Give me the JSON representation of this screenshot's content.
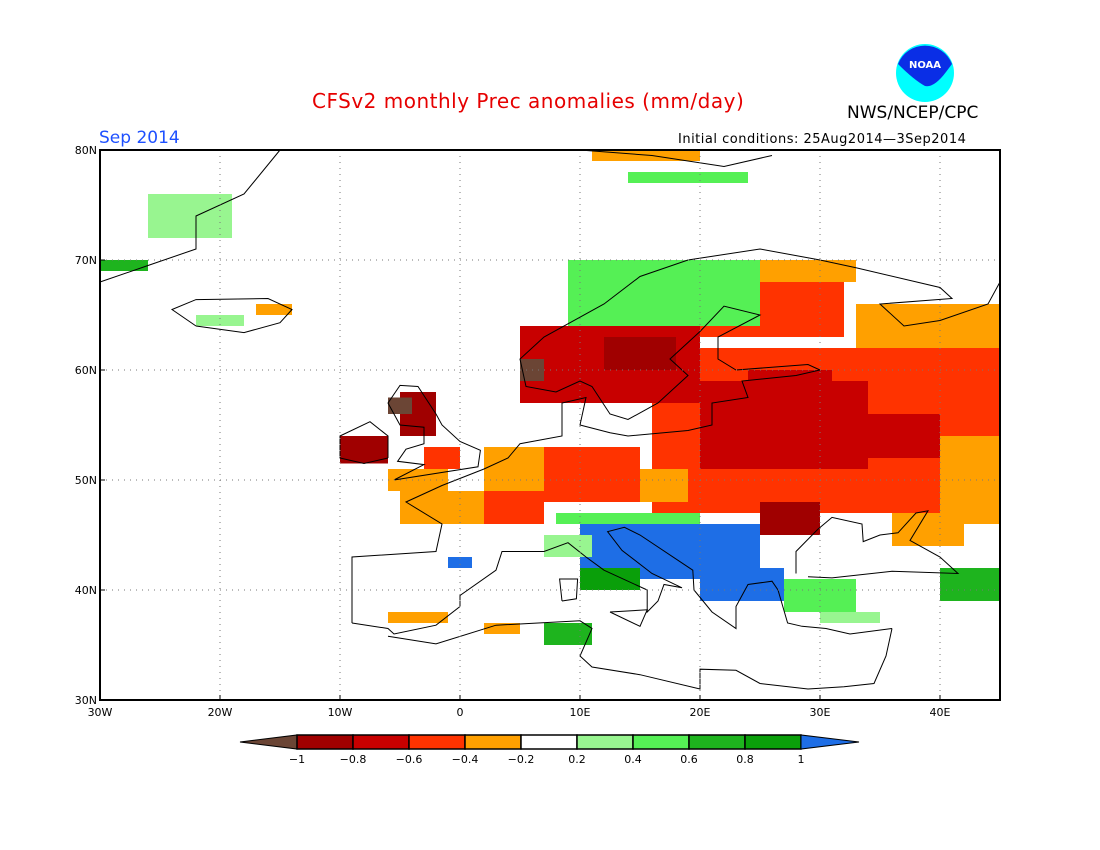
{
  "header": {
    "title": "CFSv2 monthly Prec anomalies (mm/day)",
    "month": "Sep 2014",
    "initial_conditions": "Initial conditions: 25Aug2014—3Sep2014",
    "organization": "NWS/NCEP/CPC",
    "logo_text": "NOAA"
  },
  "map": {
    "lon_range": [
      -30,
      45
    ],
    "lat_range": [
      30,
      80
    ],
    "lon_ticks": [
      "30W",
      "20W",
      "10W",
      "0",
      "10E",
      "20E",
      "30E",
      "40E"
    ],
    "lat_ticks": [
      "30N",
      "40N",
      "50N",
      "60N",
      "70N",
      "80N"
    ],
    "grid": "dotted, every 10 degrees",
    "anomaly_regions": [
      {
        "lon": [
          16,
          45
        ],
        "lat": [
          47,
          62
        ],
        "level": 3
      },
      {
        "lon": [
          20,
          34
        ],
        "lat": [
          51,
          59
        ],
        "level": 2
      },
      {
        "lon": [
          34,
          40
        ],
        "lat": [
          52,
          56
        ],
        "level": 2
      },
      {
        "lon": [
          18,
          32
        ],
        "lat": [
          63,
          68
        ],
        "level": 3
      },
      {
        "lon": [
          24,
          31
        ],
        "lat": [
          55,
          60
        ],
        "level": 2
      },
      {
        "lon": [
          22,
          33
        ],
        "lat": [
          68,
          70
        ],
        "level": 4
      },
      {
        "lon": [
          33,
          45
        ],
        "lat": [
          62,
          66
        ],
        "level": 4
      },
      {
        "lon": [
          40,
          45
        ],
        "lat": [
          46,
          54
        ],
        "level": 4
      },
      {
        "lon": [
          36,
          42
        ],
        "lat": [
          44,
          47
        ],
        "level": 4
      },
      {
        "lon": [
          5,
          20
        ],
        "lat": [
          57,
          64
        ],
        "level": 2
      },
      {
        "lon": [
          12,
          18
        ],
        "lat": [
          60,
          63
        ],
        "level": 1
      },
      {
        "lon": [
          15,
          20
        ],
        "lat": [
          64,
          67
        ],
        "level": 2
      },
      {
        "lon": [
          5,
          7
        ],
        "lat": [
          59,
          61
        ],
        "level": 0
      },
      {
        "lon": [
          7,
          15
        ],
        "lat": [
          48,
          53
        ],
        "level": 3
      },
      {
        "lon": [
          15,
          19
        ],
        "lat": [
          48,
          51
        ],
        "level": 4
      },
      {
        "lon": [
          2,
          7
        ],
        "lat": [
          49,
          53
        ],
        "level": 4
      },
      {
        "lon": [
          -5,
          2
        ],
        "lat": [
          46,
          49
        ],
        "level": 4
      },
      {
        "lon": [
          2,
          7
        ],
        "lat": [
          46,
          49
        ],
        "level": 3
      },
      {
        "lon": [
          -6,
          -1
        ],
        "lat": [
          49,
          51
        ],
        "level": 4
      },
      {
        "lon": [
          -3,
          0
        ],
        "lat": [
          51,
          53
        ],
        "level": 3
      },
      {
        "lon": [
          -5,
          -2
        ],
        "lat": [
          54,
          58
        ],
        "level": 1
      },
      {
        "lon": [
          -6,
          -4
        ],
        "lat": [
          56,
          57.5
        ],
        "level": 0
      },
      {
        "lon": [
          -10,
          -6
        ],
        "lat": [
          51.5,
          54
        ],
        "level": 1
      },
      {
        "lon": [
          25,
          30
        ],
        "lat": [
          45,
          48
        ],
        "level": 1
      },
      {
        "lon": [
          10,
          25
        ],
        "lat": [
          41,
          46
        ],
        "level": 10
      },
      {
        "lon": [
          20,
          27
        ],
        "lat": [
          39,
          42
        ],
        "level": 10
      },
      {
        "lon": [
          10,
          15
        ],
        "lat": [
          40,
          42
        ],
        "level": 9
      },
      {
        "lon": [
          8,
          20
        ],
        "lat": [
          46,
          47
        ],
        "level": 7
      },
      {
        "lon": [
          7,
          11
        ],
        "lat": [
          43,
          45
        ],
        "level": 6
      },
      {
        "lon": [
          27,
          33
        ],
        "lat": [
          38,
          41
        ],
        "level": 7
      },
      {
        "lon": [
          30,
          35
        ],
        "lat": [
          37,
          38
        ],
        "level": 6
      },
      {
        "lon": [
          40,
          45
        ],
        "lat": [
          39,
          42
        ],
        "level": 8
      },
      {
        "lon": [
          7,
          11
        ],
        "lat": [
          35,
          37
        ],
        "level": 8
      },
      {
        "lon": [
          2,
          5
        ],
        "lat": [
          36,
          37
        ],
        "level": 4
      },
      {
        "lon": [
          -6,
          -1
        ],
        "lat": [
          37,
          38
        ],
        "level": 4
      },
      {
        "lon": [
          -1,
          1
        ],
        "lat": [
          42,
          43
        ],
        "level": 10
      },
      {
        "lon": [
          9,
          25
        ],
        "lat": [
          64,
          70
        ],
        "level": 7
      },
      {
        "lon": [
          -26,
          -19
        ],
        "lat": [
          72,
          76
        ],
        "level": 6
      },
      {
        "lon": [
          -30,
          -26
        ],
        "lat": [
          69,
          70
        ],
        "level": 8
      },
      {
        "lon": [
          -22,
          -18
        ],
        "lat": [
          64,
          65
        ],
        "level": 6
      },
      {
        "lon": [
          -17,
          -14
        ],
        "lat": [
          65,
          66
        ],
        "level": 4
      },
      {
        "lon": [
          11,
          20
        ],
        "lat": [
          79,
          80
        ],
        "level": 4
      },
      {
        "lon": [
          14,
          24
        ],
        "lat": [
          77,
          78
        ],
        "level": 7
      }
    ]
  },
  "colorbar": {
    "labels": [
      "−1",
      "−0.8",
      "−0.6",
      "−0.4",
      "−0.2",
      "0.2",
      "0.4",
      "0.6",
      "0.8",
      "1"
    ],
    "colors": [
      "#6b4535",
      "#a00000",
      "#c80000",
      "#ff3300",
      "#ffa000",
      "#ffffff",
      "#98f590",
      "#55f055",
      "#1eb41e",
      "#0a9f0a",
      "#1e6ee6"
    ]
  }
}
